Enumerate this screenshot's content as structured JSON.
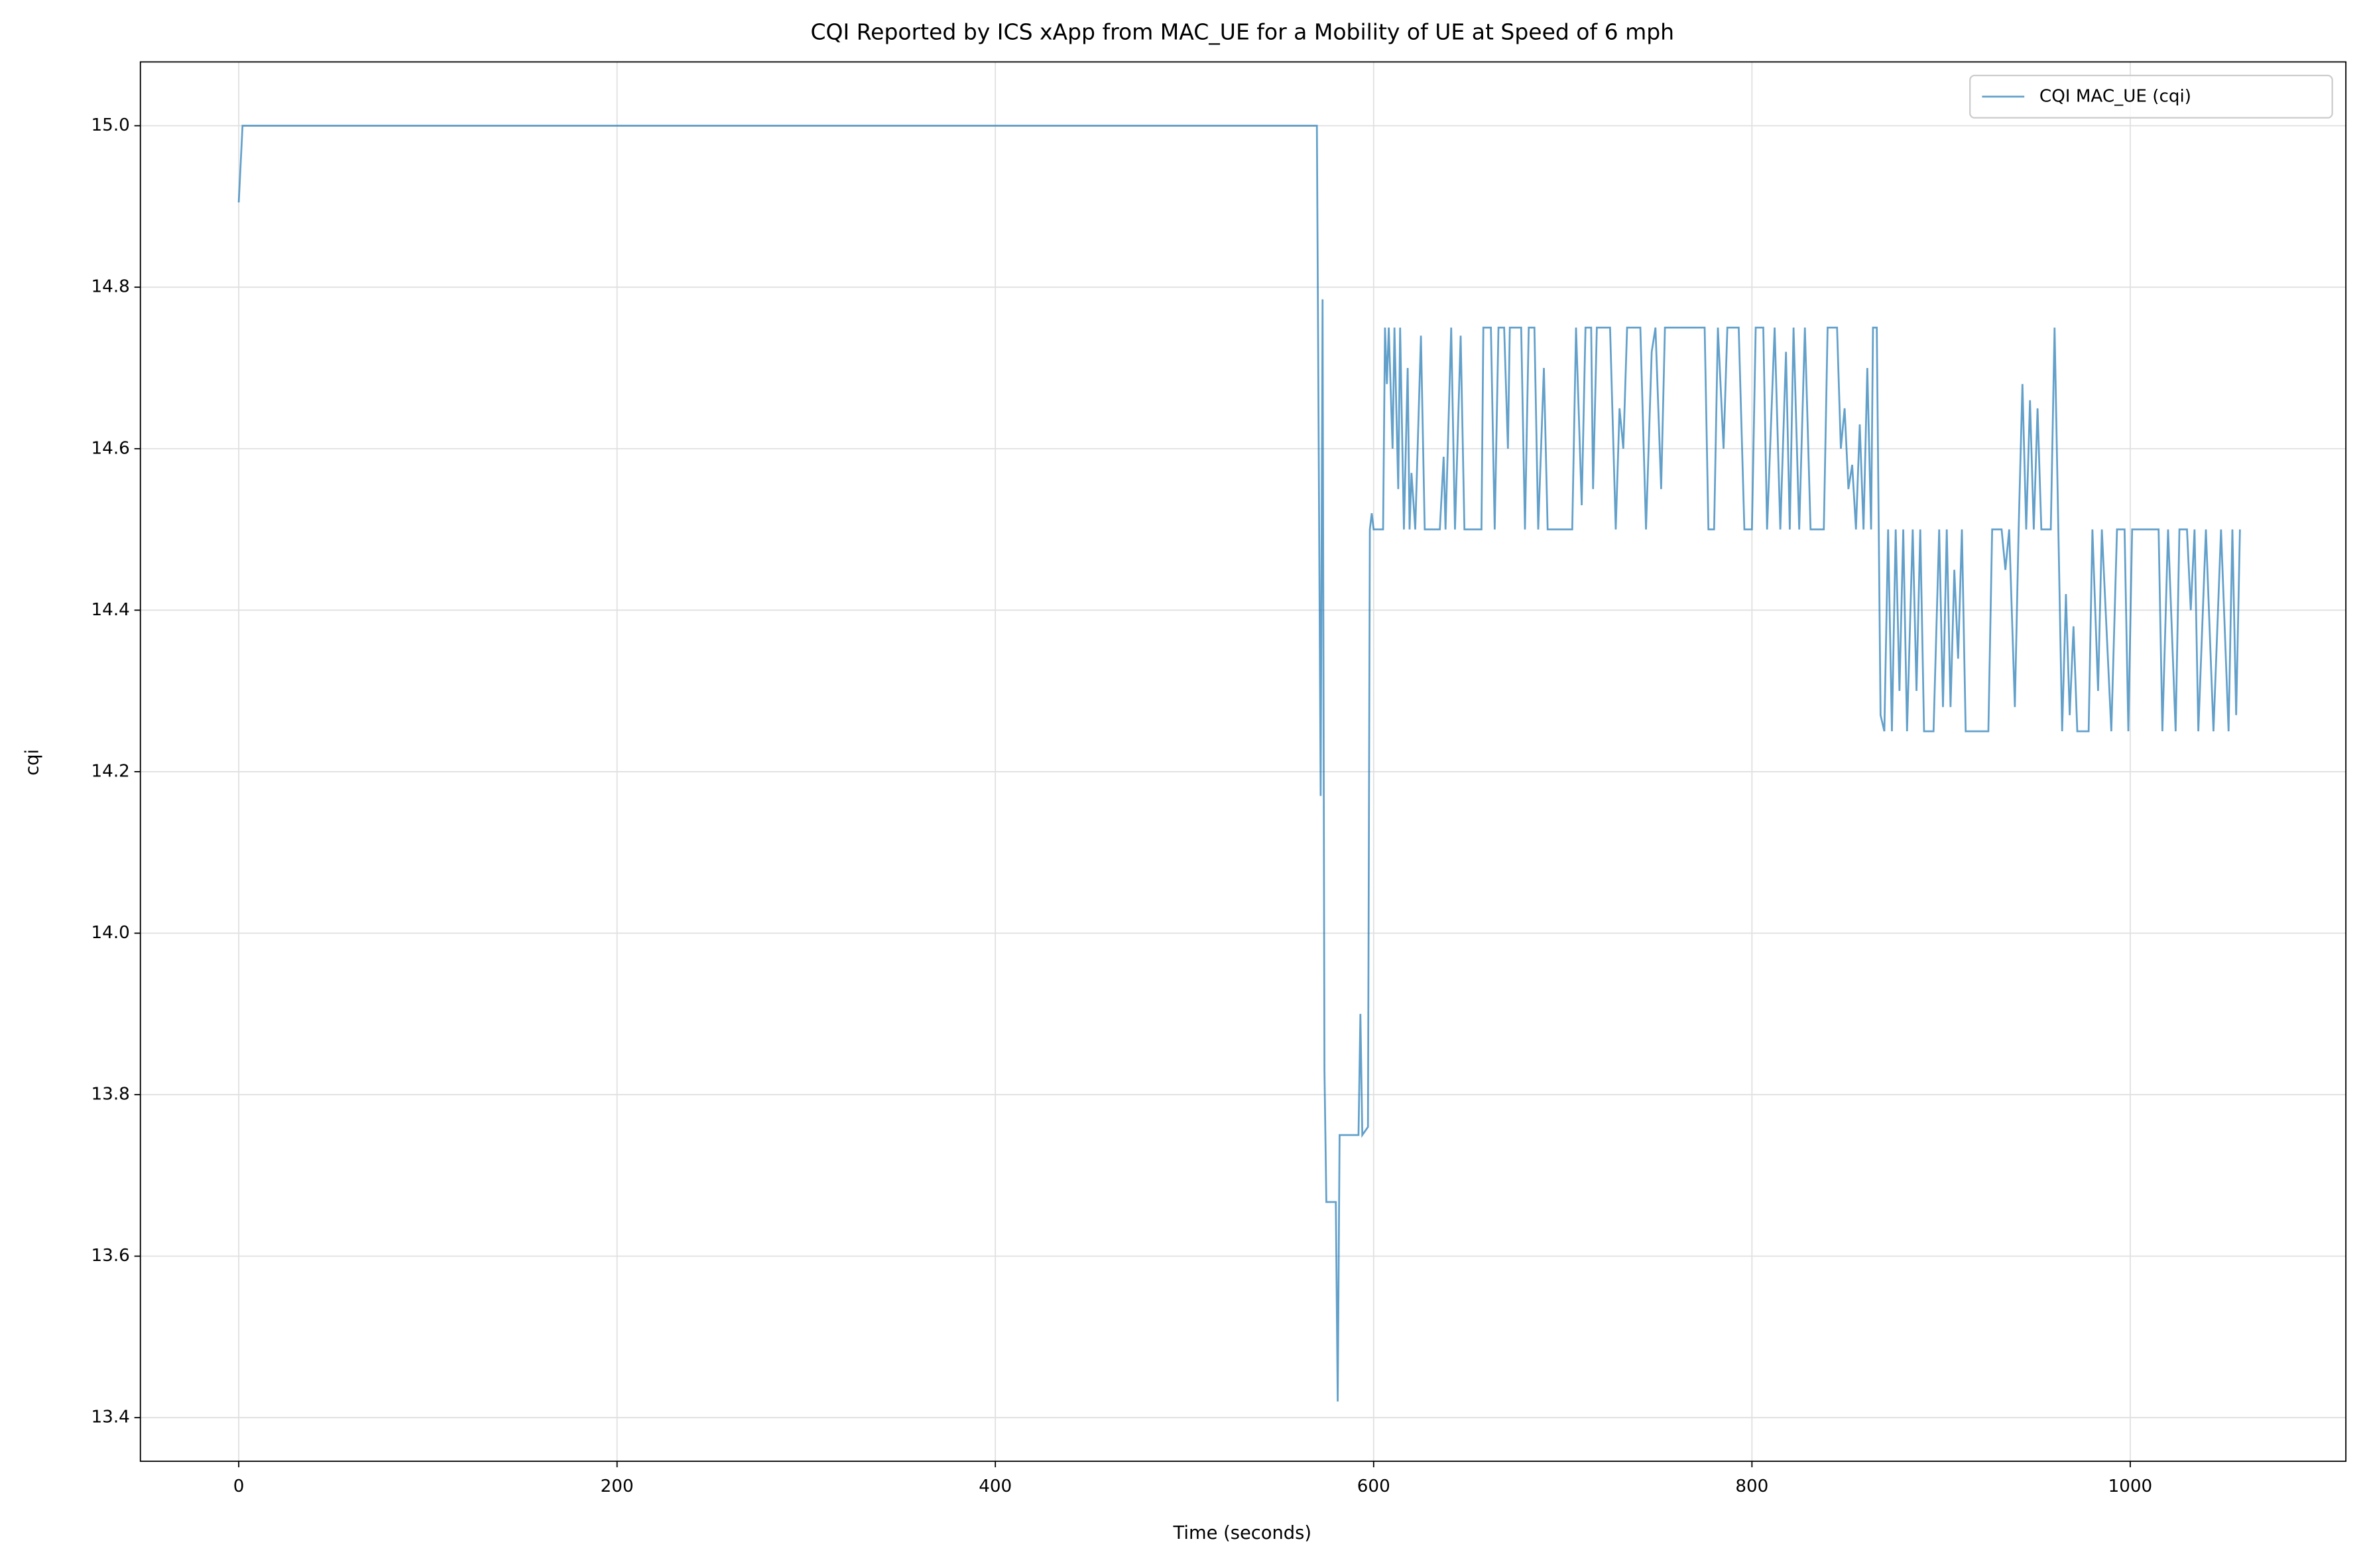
{
  "chart_data": {
    "type": "line",
    "title": "CQI Reported by ICS xApp from MAC_UE for a Mobility of UE at Speed of 6 mph",
    "x_label": "Time (seconds)",
    "y_label": "cqi",
    "xlim": [
      -52,
      1114
    ],
    "ylim": [
      13.346,
      15.079
    ],
    "xticks": [
      0,
      200,
      400,
      600,
      800,
      1000
    ],
    "yticks": [
      13.4,
      13.6,
      13.8,
      {
        "value": 14,
        "label": "14.0"
      },
      14.2,
      14.4,
      14.6,
      14.8,
      {
        "value": 15,
        "label": "15.0"
      }
    ],
    "grid": true,
    "legend": "upper right",
    "x": [
      0,
      2,
      570,
      572,
      573,
      574,
      575,
      580,
      581,
      582,
      592,
      593,
      594,
      597,
      598,
      599,
      600,
      605,
      606,
      607,
      608,
      610,
      611,
      613,
      614,
      616,
      618,
      619,
      620,
      622,
      625,
      627,
      635,
      637,
      638,
      641,
      643,
      646,
      648,
      657,
      658,
      662,
      664,
      666,
      669,
      671,
      672,
      678,
      680,
      682,
      685,
      687,
      690,
      692,
      705,
      707,
      710,
      712,
      715,
      716,
      718,
      725,
      728,
      730,
      732,
      734,
      741,
      744,
      747,
      749,
      752,
      754,
      775,
      777,
      780,
      782,
      785,
      787,
      793,
      796,
      800,
      802,
      806,
      808,
      812,
      815,
      818,
      820,
      822,
      825,
      828,
      831,
      838,
      840,
      845,
      847,
      849,
      851,
      853,
      855,
      857,
      859,
      861,
      863,
      864,
      866,
      868,
      870,
      872,
      874,
      876,
      878,
      880,
      882,
      885,
      887,
      889,
      891,
      896,
      899,
      901,
      903,
      905,
      907,
      909,
      911,
      913,
      925,
      927,
      932,
      934,
      936,
      939,
      941,
      943,
      945,
      947,
      949,
      951,
      953,
      958,
      960,
      962,
      964,
      966,
      968,
      970,
      972,
      978,
      980,
      983,
      985,
      990,
      993,
      997,
      999,
      1001,
      1015,
      1017,
      1020,
      1024,
      1026,
      1030,
      1032,
      1034,
      1036,
      1040,
      1044,
      1048,
      1052,
      1054,
      1056,
      1058
    ],
    "series": [
      {
        "name": "CQI MAC_UE (cqi)",
        "color": "#1f77b4",
        "values": [
          14.905,
          15.0,
          15.0,
          14.17,
          14.785,
          13.83,
          13.667,
          13.667,
          13.42,
          13.75,
          13.75,
          13.9,
          13.75,
          13.76,
          14.5,
          14.52,
          14.5,
          14.5,
          14.75,
          14.68,
          14.75,
          14.6,
          14.75,
          14.55,
          14.75,
          14.5,
          14.7,
          14.5,
          14.57,
          14.5,
          14.74,
          14.5,
          14.5,
          14.59,
          14.5,
          14.75,
          14.5,
          14.74,
          14.5,
          14.5,
          14.75,
          14.75,
          14.5,
          14.75,
          14.75,
          14.6,
          14.75,
          14.75,
          14.5,
          14.75,
          14.75,
          14.5,
          14.7,
          14.5,
          14.5,
          14.75,
          14.53,
          14.75,
          14.75,
          14.55,
          14.75,
          14.75,
          14.5,
          14.65,
          14.6,
          14.75,
          14.75,
          14.5,
          14.72,
          14.75,
          14.55,
          14.75,
          14.75,
          14.5,
          14.5,
          14.75,
          14.6,
          14.75,
          14.75,
          14.5,
          14.5,
          14.75,
          14.75,
          14.5,
          14.75,
          14.5,
          14.72,
          14.5,
          14.75,
          14.5,
          14.75,
          14.5,
          14.5,
          14.75,
          14.75,
          14.6,
          14.65,
          14.55,
          14.58,
          14.5,
          14.63,
          14.5,
          14.7,
          14.5,
          14.75,
          14.75,
          14.27,
          14.25,
          14.5,
          14.25,
          14.5,
          14.3,
          14.5,
          14.25,
          14.5,
          14.3,
          14.5,
          14.25,
          14.25,
          14.5,
          14.28,
          14.5,
          14.28,
          14.45,
          14.34,
          14.5,
          14.25,
          14.25,
          14.5,
          14.5,
          14.45,
          14.5,
          14.28,
          14.5,
          14.68,
          14.5,
          14.66,
          14.5,
          14.65,
          14.5,
          14.5,
          14.75,
          14.5,
          14.25,
          14.42,
          14.27,
          14.38,
          14.25,
          14.25,
          14.5,
          14.3,
          14.5,
          14.25,
          14.5,
          14.5,
          14.25,
          14.5,
          14.5,
          14.25,
          14.5,
          14.25,
          14.5,
          14.5,
          14.4,
          14.5,
          14.25,
          14.5,
          14.25,
          14.5,
          14.25,
          14.5,
          14.27,
          14.5
        ]
      }
    ]
  }
}
